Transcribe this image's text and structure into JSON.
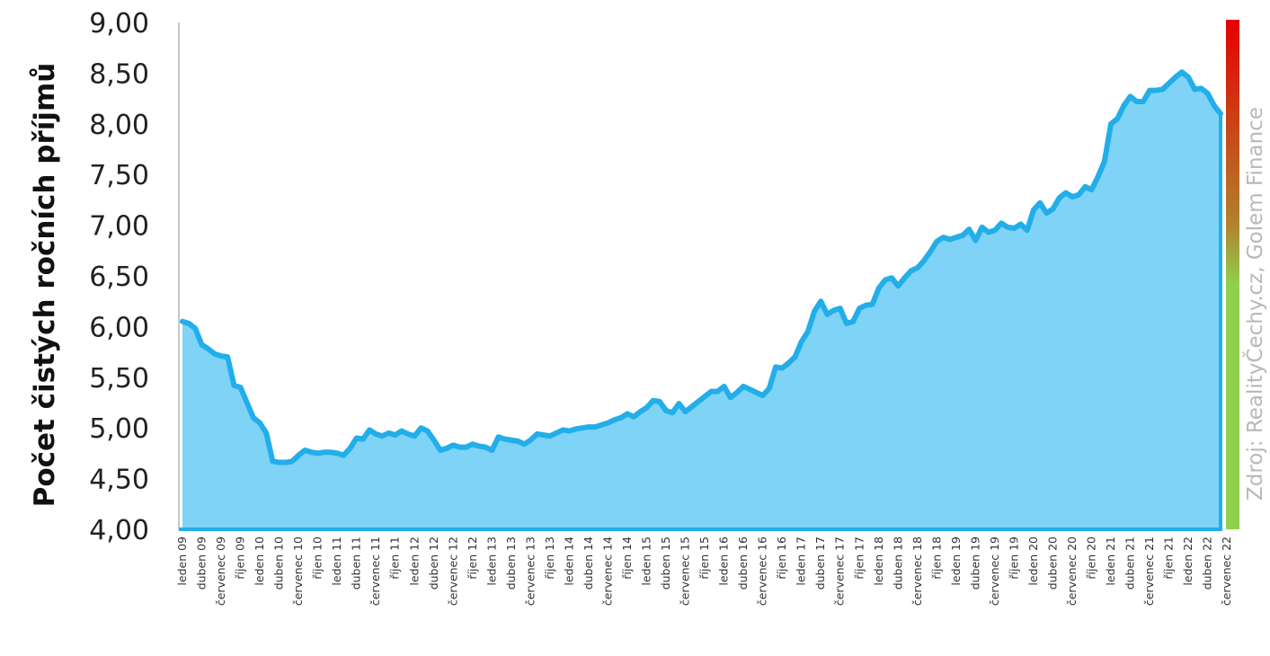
{
  "chart_data": {
    "type": "area",
    "ylabel": "Počet čistých ročních příjmů",
    "source": "Zdroj: RealityČechy.cz, Golem Finance",
    "ylim": [
      4,
      9
    ],
    "yticks": [
      4,
      4.5,
      5,
      5.5,
      6,
      6.5,
      7,
      7.5,
      8,
      8.5,
      9
    ],
    "ytick_labels": [
      "4,00",
      "4,50",
      "5,00",
      "5,50",
      "6,00",
      "6,50",
      "7,00",
      "7,50",
      "8,00",
      "8,50",
      "9,00"
    ],
    "x_labels": [
      "leden 09",
      "duben 09",
      "červenec 09",
      "říjen 09",
      "leden 10",
      "duben 10",
      "červenec 10",
      "říjen 10",
      "leden 11",
      "duben 11",
      "červenec 11",
      "říjen 11",
      "leden 12",
      "duben 12",
      "červenec 12",
      "říjen 12",
      "leden 13",
      "duben 13",
      "červenec 13",
      "říjen 13",
      "leden 14",
      "duben 14",
      "červenec 14",
      "říjen 14",
      "leden 15",
      "duben 15",
      "červenec 15",
      "říjen 15",
      "leden 16",
      "duben 16",
      "červenec 16",
      "říjen 16",
      "leden 17",
      "duben 17",
      "červenec 17",
      "říjen 17",
      "leden 18",
      "duben 18",
      "červenec 18",
      "říjen 18",
      "leden 19",
      "duben 19",
      "červenec 19",
      "říjen 19",
      "leden 20",
      "duben 20",
      "červenec 20",
      "říjen 20",
      "leden 21",
      "duben 21",
      "červenec 21",
      "říjen 21",
      "leden 22",
      "duben 22",
      "červenec 22"
    ],
    "x_start": "2009-01",
    "series": [
      {
        "values": [
          6.05,
          6.03,
          5.98,
          5.82,
          5.78,
          5.73,
          5.71,
          5.7,
          5.42,
          5.4,
          5.25,
          5.1,
          5.05,
          4.95,
          4.67,
          4.66,
          4.66,
          4.67,
          4.73,
          4.78,
          4.76,
          4.75,
          4.76,
          4.76,
          4.75,
          4.73,
          4.8,
          4.9,
          4.89,
          4.98,
          4.94,
          4.92,
          4.95,
          4.93,
          4.97,
          4.94,
          4.92,
          5.0,
          4.97,
          4.88,
          4.78,
          4.8,
          4.83,
          4.81,
          4.81,
          4.84,
          4.82,
          4.81,
          4.78,
          4.91,
          4.89,
          4.88,
          4.87,
          4.84,
          4.88,
          4.94,
          4.93,
          4.92,
          4.95,
          4.98,
          4.97,
          4.99,
          5.0,
          5.01,
          5.01,
          5.03,
          5.05,
          5.08,
          5.1,
          5.14,
          5.11,
          5.16,
          5.2,
          5.27,
          5.26,
          5.17,
          5.15,
          5.24,
          5.16,
          5.21,
          5.26,
          5.31,
          5.36,
          5.36,
          5.41,
          5.3,
          5.35,
          5.41,
          5.38,
          5.35,
          5.32,
          5.39,
          5.6,
          5.59,
          5.64,
          5.7,
          5.85,
          5.95,
          6.15,
          6.25,
          6.12,
          6.16,
          6.18,
          6.03,
          6.05,
          6.18,
          6.21,
          6.22,
          6.38,
          6.46,
          6.48,
          6.4,
          6.48,
          6.55,
          6.58,
          6.65,
          6.74,
          6.84,
          6.88,
          6.86,
          6.88,
          6.9,
          6.96,
          6.85,
          6.98,
          6.93,
          6.95,
          7.02,
          6.98,
          6.97,
          7.01,
          6.95,
          7.15,
          7.22,
          7.12,
          7.16,
          7.27,
          7.32,
          7.28,
          7.3,
          7.38,
          7.35,
          7.48,
          7.63,
          8.0,
          8.05,
          8.18,
          8.27,
          8.22,
          8.22,
          8.33,
          8.33,
          8.34,
          8.4,
          8.46,
          8.51,
          8.46,
          8.34,
          8.35,
          8.3,
          8.18,
          8.1
        ]
      }
    ],
    "colors": {
      "fill": "#7fd3f7",
      "line": "#22aee9",
      "gradient_top": "#e60000",
      "gradient_mid": "#b0822e",
      "gradient_bottom": "#8fd14f"
    }
  }
}
